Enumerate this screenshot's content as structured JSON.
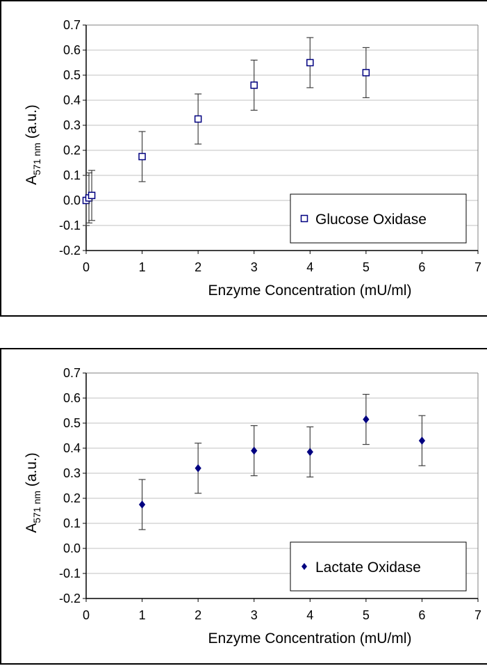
{
  "chart_data": [
    {
      "type": "scatter",
      "xlabel": "Enzyme Concentration (mU/ml)",
      "ylabel": "A",
      "ylabel_sub": "571 nm",
      "ylabel_unit": " (a.u.)",
      "xlim": [
        0,
        7
      ],
      "ylim": [
        -0.2,
        0.7
      ],
      "x_ticks": [
        "0",
        "1",
        "2",
        "3",
        "4",
        "5",
        "6",
        "7"
      ],
      "y_ticks": [
        "0.7",
        "0.6",
        "0.5",
        "0.4",
        "0.3",
        "0.2",
        "0.1",
        "0.0",
        "-0.1",
        "-0.2"
      ],
      "grid": true,
      "legend_position": "bottom-right",
      "marker": "open-square",
      "color": "#000080",
      "series": [
        {
          "name": "Glucose Oxidase",
          "x": [
            0,
            0.05,
            0.1,
            1,
            2,
            3,
            4,
            5
          ],
          "y": [
            0.0,
            0.01,
            0.02,
            0.175,
            0.325,
            0.46,
            0.55,
            0.51
          ],
          "error": [
            0.1,
            0.1,
            0.1,
            0.1,
            0.1,
            0.1,
            0.1,
            0.1
          ]
        }
      ]
    },
    {
      "type": "scatter",
      "xlabel": "Enzyme Concentration (mU/ml)",
      "ylabel": "A",
      "ylabel_sub": "571 nm",
      "ylabel_unit": " (a.u.)",
      "xlim": [
        0,
        7
      ],
      "ylim": [
        -0.2,
        0.7
      ],
      "x_ticks": [
        "0",
        "1",
        "2",
        "3",
        "4",
        "5",
        "6",
        "7"
      ],
      "y_ticks": [
        "0.7",
        "0.6",
        "0.5",
        "0.4",
        "0.3",
        "0.2",
        "0.1",
        "0.0",
        "-0.1",
        "-0.2"
      ],
      "grid": true,
      "legend_position": "bottom-right",
      "marker": "filled-diamond",
      "color": "#000080",
      "series": [
        {
          "name": "Lactate Oxidase",
          "x": [
            1,
            2,
            3,
            4,
            5,
            6
          ],
          "y": [
            0.175,
            0.32,
            0.39,
            0.385,
            0.515,
            0.43
          ],
          "error": [
            0.1,
            0.1,
            0.1,
            0.1,
            0.1,
            0.1
          ]
        }
      ]
    }
  ]
}
